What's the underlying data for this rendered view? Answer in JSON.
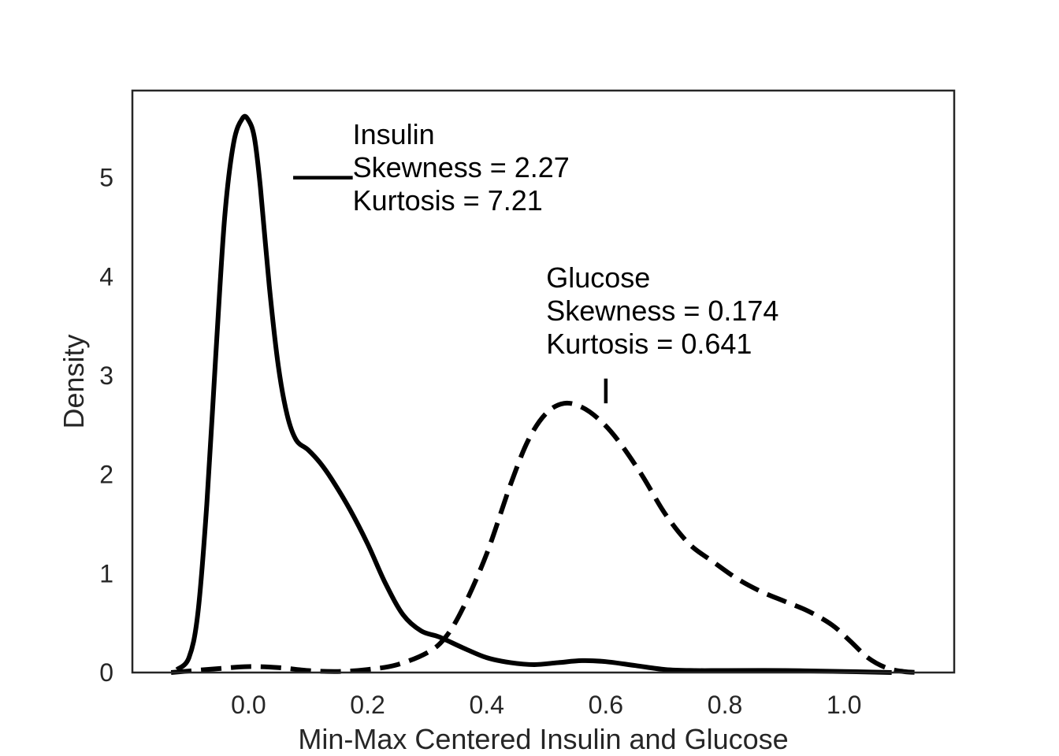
{
  "chart_data": {
    "type": "line",
    "title": "",
    "xlabel": "Min-Max Centered Insulin and Glucose",
    "ylabel": "Density",
    "xlim": [
      -0.195,
      1.185
    ],
    "ylim": [
      0,
      5.88
    ],
    "xticks": [
      0.0,
      0.2,
      0.4,
      0.6,
      0.8,
      1.0
    ],
    "xtick_labels": [
      "0.0",
      "0.2",
      "0.4",
      "0.6",
      "0.8",
      "1.0"
    ],
    "yticks": [
      0,
      1,
      2,
      3,
      4,
      5
    ],
    "ytick_labels": [
      "0",
      "1",
      "2",
      "3",
      "4",
      "5"
    ],
    "grid": false,
    "legend": "none",
    "series": [
      {
        "name": "Insulin",
        "line_style": "solid",
        "color": "#000000",
        "x": [
          -0.12,
          -0.1,
          -0.085,
          -0.07,
          -0.055,
          -0.04,
          -0.025,
          -0.01,
          0.0,
          0.01,
          0.02,
          0.035,
          0.05,
          0.065,
          0.08,
          0.1,
          0.12,
          0.14,
          0.17,
          0.2,
          0.23,
          0.26,
          0.29,
          0.32,
          0.36,
          0.4,
          0.44,
          0.48,
          0.52,
          0.56,
          0.6,
          0.65,
          0.7,
          0.75,
          0.8,
          0.9,
          1.0,
          1.08
        ],
        "y": [
          0.03,
          0.15,
          0.6,
          1.7,
          3.2,
          4.6,
          5.35,
          5.6,
          5.58,
          5.4,
          4.9,
          3.9,
          3.1,
          2.6,
          2.35,
          2.25,
          2.12,
          1.95,
          1.65,
          1.3,
          0.9,
          0.58,
          0.42,
          0.36,
          0.25,
          0.15,
          0.1,
          0.08,
          0.1,
          0.12,
          0.11,
          0.07,
          0.03,
          0.02,
          0.02,
          0.02,
          0.01,
          0.0
        ]
      },
      {
        "name": "Glucose",
        "line_style": "dashed",
        "color": "#000000",
        "x": [
          -0.13,
          -0.05,
          0.0,
          0.05,
          0.1,
          0.15,
          0.2,
          0.25,
          0.3,
          0.33,
          0.36,
          0.4,
          0.44,
          0.47,
          0.5,
          0.53,
          0.56,
          0.59,
          0.62,
          0.66,
          0.7,
          0.74,
          0.78,
          0.82,
          0.86,
          0.9,
          0.94,
          0.98,
          1.01,
          1.04,
          1.07,
          1.1,
          1.13
        ],
        "y": [
          0.0,
          0.04,
          0.06,
          0.05,
          0.02,
          0.01,
          0.03,
          0.08,
          0.2,
          0.35,
          0.65,
          1.2,
          1.9,
          2.35,
          2.62,
          2.72,
          2.68,
          2.55,
          2.35,
          2.0,
          1.6,
          1.3,
          1.12,
          0.95,
          0.82,
          0.72,
          0.62,
          0.48,
          0.32,
          0.15,
          0.05,
          0.01,
          0.0
        ]
      }
    ],
    "annotations": [
      {
        "series": "Insulin",
        "lines": [
          "Insulin",
          "Skewness = 2.27",
          "Kurtosis = 7.21"
        ],
        "text_xy": [
          0.175,
          5.34
        ],
        "arrow_from": [
          0.175,
          5.0
        ],
        "arrow_to": [
          0.075,
          5.0
        ]
      },
      {
        "series": "Glucose",
        "lines": [
          "Glucose",
          "Skewness = 0.174",
          "Kurtosis = 0.641"
        ],
        "text_xy": [
          0.5,
          3.89
        ],
        "arrow_from": [
          0.6,
          2.97
        ],
        "arrow_to": [
          0.6,
          2.72
        ]
      }
    ]
  }
}
